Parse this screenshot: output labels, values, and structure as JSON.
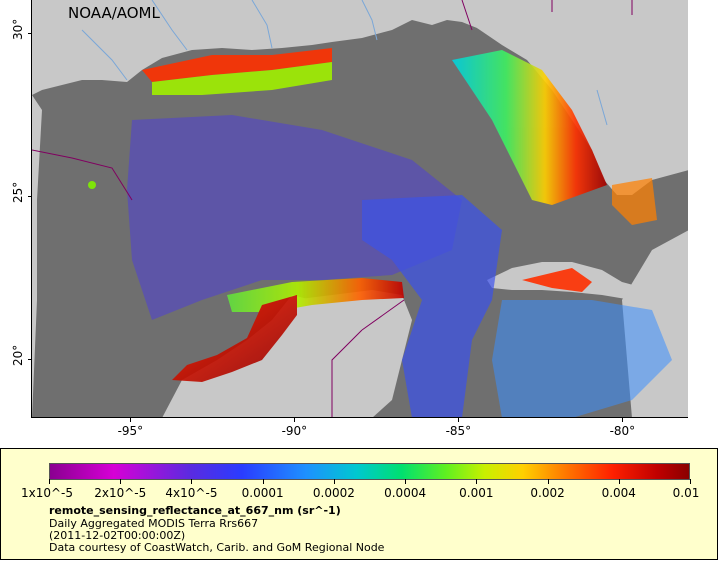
{
  "map": {
    "credit": "NOAA/AOML",
    "lat_ticks": [
      {
        "label": "30°",
        "value": 30
      },
      {
        "label": "25°",
        "value": 25
      },
      {
        "label": "20°",
        "value": 20
      }
    ],
    "lon_ticks": [
      {
        "label": "-95°",
        "value": -95
      },
      {
        "label": "-90°",
        "value": -90
      },
      {
        "label": "-85°",
        "value": -85
      },
      {
        "label": "-80°",
        "value": -80
      }
    ],
    "extent": {
      "lon_min": -98,
      "lon_max": -78,
      "lat_min": 18.2,
      "lat_max": 31
    },
    "colors": {
      "ocean_nodata": "#6f6f6f",
      "land": "#c8c8c8",
      "borders": "#800060",
      "rivers": "#7aa7d8"
    }
  },
  "legend": {
    "colorbar_labels": [
      "1x10^-5",
      "2x10^-5",
      "4x10^-5",
      "0.0001",
      "0.0002",
      "0.0004",
      "0.001",
      "0.002",
      "0.004",
      "0.01"
    ],
    "title": "remote_sensing_reflectance_at_667_nm (sr^-1)",
    "line1": "Daily Aggregated MODIS Terra Rrs667",
    "line2": "(2011-12-02T00:00:00Z)",
    "line3": "Data courtesy of CoastWatch, Carib. and GoM Regional Node",
    "background": "#ffffcc"
  }
}
